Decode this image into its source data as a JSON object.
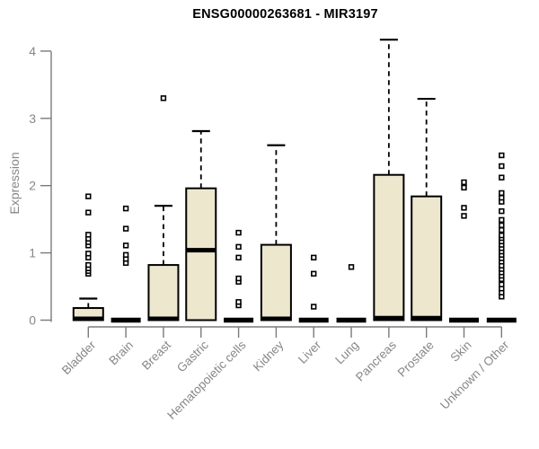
{
  "chart_data": {
    "type": "boxplot",
    "title": "ENSG00000263681 - MIR3197",
    "ylabel": "Expression",
    "ylim": [
      0,
      4
    ],
    "yticks": [
      0,
      1,
      2,
      3,
      4
    ],
    "grid": false,
    "legend": "none",
    "categories": [
      "Bladder",
      "Brain",
      "Breast",
      "Gastric",
      "Hematopoietic cells",
      "Kidney",
      "Liver",
      "Lung",
      "Pancreas",
      "Prostate",
      "Skin",
      "Unknown / Other"
    ],
    "series": [
      {
        "name": "Bladder",
        "whisker_low": 0,
        "q1": 0,
        "median": 0.02,
        "q3": 0.18,
        "whisker_high": 0.32,
        "outliers": [
          0.69,
          0.73,
          0.77,
          0.82,
          0.93,
          0.99,
          1.11,
          1.16,
          1.21,
          1.27,
          1.6,
          1.84
        ]
      },
      {
        "name": "Brain",
        "whisker_low": 0,
        "q1": 0,
        "median": 0,
        "q3": 0,
        "whisker_high": 0,
        "outliers": [
          0.85,
          0.91,
          0.97,
          1.11,
          1.36,
          1.66
        ]
      },
      {
        "name": "Breast",
        "whisker_low": 0,
        "q1": 0,
        "median": 0.02,
        "q3": 0.82,
        "whisker_high": 1.7,
        "outliers": [
          3.3
        ]
      },
      {
        "name": "Gastric",
        "whisker_low": 0,
        "q1": 0,
        "median": 1.04,
        "q3": 1.96,
        "whisker_high": 2.81,
        "outliers": []
      },
      {
        "name": "Hematopoietic cells",
        "whisker_low": 0,
        "q1": 0,
        "median": 0,
        "q3": 0,
        "whisker_high": 0,
        "outliers": [
          0.22,
          0.27,
          0.57,
          0.62,
          0.93,
          1.09,
          1.3
        ]
      },
      {
        "name": "Kidney",
        "whisker_low": 0,
        "q1": 0,
        "median": 0.02,
        "q3": 1.12,
        "whisker_high": 2.6,
        "outliers": []
      },
      {
        "name": "Liver",
        "whisker_low": 0,
        "q1": 0,
        "median": 0,
        "q3": 0,
        "whisker_high": 0,
        "outliers": [
          0.2,
          0.69,
          0.93
        ]
      },
      {
        "name": "Lung",
        "whisker_low": 0,
        "q1": 0,
        "median": 0,
        "q3": 0,
        "whisker_high": 0,
        "outliers": [
          0.79
        ]
      },
      {
        "name": "Pancreas",
        "whisker_low": 0,
        "q1": 0,
        "median": 0.03,
        "q3": 2.16,
        "whisker_high": 4.17,
        "outliers": []
      },
      {
        "name": "Prostate",
        "whisker_low": 0,
        "q1": 0,
        "median": 0.03,
        "q3": 1.84,
        "whisker_high": 3.29,
        "outliers": []
      },
      {
        "name": "Skin",
        "whisker_low": 0,
        "q1": 0,
        "median": 0,
        "q3": 0,
        "whisker_high": 0,
        "outliers": [
          1.55,
          1.67,
          1.97,
          2.05
        ]
      },
      {
        "name": "Unknown / Other",
        "whisker_low": 0,
        "q1": 0,
        "median": 0,
        "q3": 0,
        "whisker_high": 0,
        "outliers": [
          0.35,
          0.41,
          0.47,
          0.53,
          0.61,
          0.66,
          0.71,
          0.76,
          0.81,
          0.87,
          0.92,
          0.97,
          1.02,
          1.07,
          1.12,
          1.17,
          1.22,
          1.26,
          1.34,
          1.41,
          1.49,
          1.62,
          1.76,
          1.82,
          1.89,
          2.12,
          2.29,
          2.45
        ]
      }
    ],
    "colors": {
      "box_fill": "#EDE7CE",
      "box_stroke": "#000000",
      "median": "#000000",
      "outlier_stroke": "#000000",
      "axis_line": "#7a7a7a",
      "tick_label": "#878787",
      "title": "#000000",
      "background": "#ffffff"
    }
  }
}
